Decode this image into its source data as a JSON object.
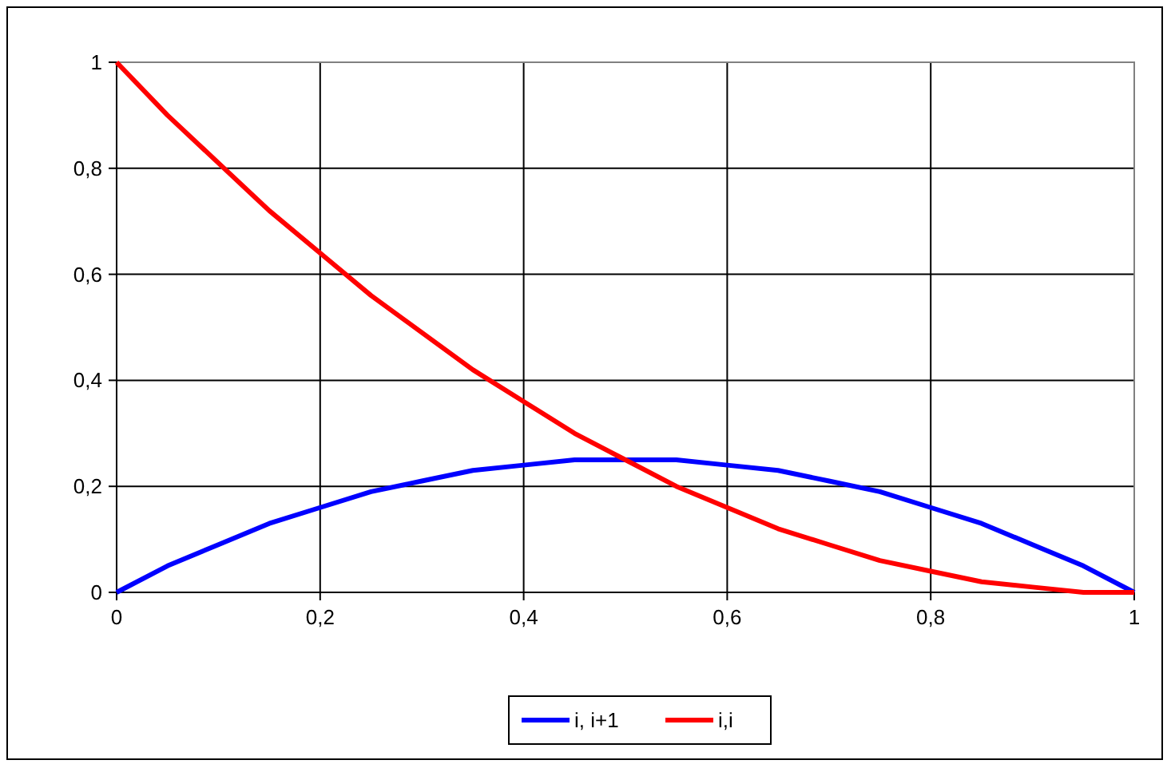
{
  "chart_data": {
    "type": "line",
    "x": [
      0,
      0.05,
      0.1,
      0.15,
      0.2,
      0.25,
      0.3,
      0.35,
      0.4,
      0.45,
      0.5,
      0.55,
      0.6,
      0.65,
      0.7,
      0.75,
      0.8,
      0.85,
      0.9,
      0.95,
      1
    ],
    "series": [
      {
        "name": "i, i+1",
        "color": "#0000ff",
        "values": [
          0,
          0.05,
          0.09,
          0.13,
          0.16,
          0.19,
          0.21,
          0.23,
          0.24,
          0.25,
          0.25,
          0.25,
          0.24,
          0.23,
          0.21,
          0.19,
          0.16,
          0.13,
          0.09,
          0.05,
          0
        ]
      },
      {
        "name": "i,i",
        "color": "#ff0000",
        "values": [
          1,
          0.9,
          0.81,
          0.72,
          0.64,
          0.56,
          0.49,
          0.42,
          0.36,
          0.3,
          0.25,
          0.2,
          0.16,
          0.12,
          0.09,
          0.06,
          0.04,
          0.02,
          0.01,
          0,
          0
        ]
      }
    ],
    "xlim": [
      0,
      1
    ],
    "ylim": [
      0,
      1
    ],
    "xticks": [
      0,
      {
        "value": 0.2,
        "label": "0,2"
      },
      {
        "value": 0.4,
        "label": "0,4"
      },
      {
        "value": 0.6,
        "label": "0,6"
      },
      {
        "value": 0.8,
        "label": "0,8"
      },
      1
    ],
    "yticks": [
      0,
      {
        "value": 0.2,
        "label": "0,2"
      },
      {
        "value": 0.4,
        "label": "0,4"
      },
      {
        "value": 0.6,
        "label": "0,6"
      },
      {
        "value": 0.8,
        "label": "0,8"
      },
      1
    ],
    "grid": true,
    "legend": "bottom",
    "marker": "none",
    "line_style": "solid"
  }
}
